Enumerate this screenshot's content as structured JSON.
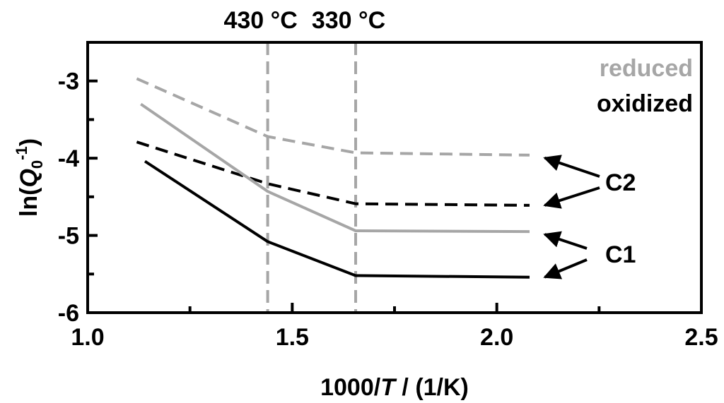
{
  "chart_data": {
    "type": "line",
    "title": "",
    "xlabel": {
      "prefix": "1000/",
      "italic": "T",
      "suffix": " / (1/K)"
    },
    "ylabel": {
      "prefix": "ln(",
      "italic": "Q",
      "sub": "0",
      "sup": "-1",
      "suffix": ")"
    },
    "xlim": [
      1.0,
      2.5
    ],
    "ylim": [
      -6.0,
      -2.5
    ],
    "x_ticks": [
      {
        "value": 1.0,
        "label": "1.0"
      },
      {
        "value": 1.5,
        "label": "1.5"
      },
      {
        "value": 2.0,
        "label": "2.0"
      },
      {
        "value": 2.5,
        "label": "2.5"
      }
    ],
    "x_minor_ticks": [
      1.25,
      1.75,
      2.25
    ],
    "y_ticks": [
      {
        "value": -6,
        "label": "-6"
      },
      {
        "value": -5,
        "label": "-5"
      },
      {
        "value": -4,
        "label": "-4"
      },
      {
        "value": -3,
        "label": "-3"
      }
    ],
    "y_minor_ticks": [
      -5.5,
      -4.5,
      -3.5
    ],
    "grid": false,
    "vlines": [
      {
        "x": 1.44,
        "label": "430 °C",
        "color": "#a6a6a6"
      },
      {
        "x": 1.655,
        "label": "330 °C",
        "color": "#a6a6a6"
      }
    ],
    "series": [
      {
        "key": "reduced-c2",
        "color": "#a6a6a6",
        "dash": true,
        "points": [
          [
            1.12,
            -2.97
          ],
          [
            1.44,
            -3.72
          ],
          [
            1.655,
            -3.93
          ],
          [
            2.08,
            -3.96
          ]
        ]
      },
      {
        "key": "oxidized-c2",
        "color": "#000000",
        "dash": true,
        "points": [
          [
            1.12,
            -3.79
          ],
          [
            1.44,
            -4.33
          ],
          [
            1.655,
            -4.59
          ],
          [
            2.08,
            -4.61
          ]
        ]
      },
      {
        "key": "reduced-c1",
        "color": "#a6a6a6",
        "dash": false,
        "points": [
          [
            1.13,
            -3.3
          ],
          [
            1.44,
            -4.43
          ],
          [
            1.655,
            -4.94
          ],
          [
            2.08,
            -4.95
          ]
        ]
      },
      {
        "key": "oxidized-c1",
        "color": "#000000",
        "dash": false,
        "points": [
          [
            1.14,
            -4.04
          ],
          [
            1.44,
            -5.08
          ],
          [
            1.655,
            -5.52
          ],
          [
            2.08,
            -5.54
          ]
        ]
      }
    ],
    "legend": [
      {
        "label": "reduced",
        "color": "#a6a6a6"
      },
      {
        "label": "oxidized",
        "color": "#000000"
      }
    ],
    "annotations": [
      {
        "label": "C2",
        "arrows_to": [
          [
            2.1,
            -3.96
          ],
          [
            2.1,
            -4.61
          ]
        ]
      },
      {
        "label": "C1",
        "arrows_to": [
          [
            2.1,
            -4.95
          ],
          [
            2.1,
            -5.54
          ]
        ]
      }
    ]
  }
}
